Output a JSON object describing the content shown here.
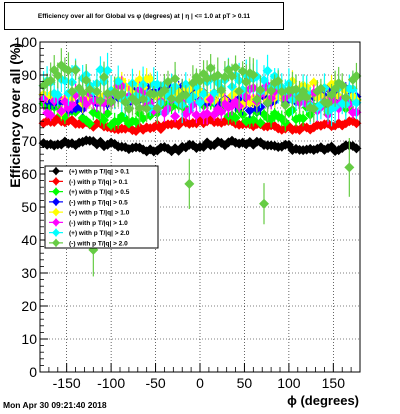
{
  "timestamp": "Mon Apr 30 09:21:40 2018",
  "chart_data": {
    "type": "scatter",
    "title": "Efficiency over all for Global vs φ (degrees) at | η | <= 1.0 at pT > 0.11",
    "xlabel": "ϕ (degrees)",
    "ylabel": "Efficiency over all (%)",
    "xlim": [
      -180,
      180
    ],
    "ylim": [
      0,
      100
    ],
    "xticks": [
      -150,
      -100,
      -50,
      0,
      50,
      100,
      150
    ],
    "yticks": [
      0,
      10,
      20,
      30,
      40,
      50,
      60,
      70,
      80,
      90,
      100
    ],
    "grid": true,
    "legend_position": "middle-left",
    "series": [
      {
        "name": "(+) with p T/|q| > 0.1",
        "color": "#000000",
        "marker": "diamond",
        "base": 68.5,
        "amp": 1.0,
        "jitter": 0.8,
        "err": 1.0,
        "drops": []
      },
      {
        "name": "(-) with p T/|q| > 0.1",
        "color": "#ff0000",
        "marker": "diamond",
        "base": 75.0,
        "amp": 1.2,
        "jitter": 0.8,
        "err": 1.0,
        "drops": []
      },
      {
        "name": "(+) with p T/|q| > 0.5",
        "color": "#00ff00",
        "marker": "diamond",
        "base": 79.0,
        "amp": 2.5,
        "jitter": 2.0,
        "err": 2.0,
        "drops": []
      },
      {
        "name": "(-) with p T/|q| > 0.5",
        "color": "#0000ff",
        "marker": "diamond",
        "base": 83.0,
        "amp": 2.0,
        "jitter": 2.0,
        "err": 2.0,
        "drops": []
      },
      {
        "name": "(+) with p T/|q| > 1.0",
        "color": "#ffff00",
        "marker": "diamond",
        "base": 84.0,
        "amp": 2.5,
        "jitter": 3.0,
        "err": 2.5,
        "drops": []
      },
      {
        "name": "(-) with p T/|q| > 1.0",
        "color": "#ff00ff",
        "marker": "diamond",
        "base": 82.0,
        "amp": 2.0,
        "jitter": 3.0,
        "err": 2.5,
        "drops": []
      },
      {
        "name": "(+) with p T/|q| > 2.0",
        "color": "#00ffff",
        "marker": "diamond",
        "base": 86.0,
        "amp": 3.0,
        "jitter": 4.0,
        "err": 4.0,
        "drops": [
          [
            -102,
            58
          ],
          [
            -62,
            50
          ],
          [
            -6,
            52
          ],
          [
            -2,
            47
          ],
          [
            46,
            60
          ],
          [
            125,
            48
          ]
        ]
      },
      {
        "name": "(-) with p T/|q| > 2.0",
        "color": "#66cc44",
        "marker": "diamond",
        "base": 86.0,
        "amp": 3.0,
        "jitter": 4.0,
        "err": 4.0,
        "drops": [
          [
            -162,
            62
          ],
          [
            -120,
            37
          ],
          [
            -78,
            37
          ],
          [
            -45,
            44
          ],
          [
            -18,
            27
          ],
          [
            -12,
            57
          ],
          [
            -10,
            50
          ],
          [
            18,
            48
          ],
          [
            42,
            44
          ],
          [
            72,
            51
          ],
          [
            102,
            62
          ],
          [
            105,
            43
          ],
          [
            162,
            50
          ],
          [
            168,
            62
          ]
        ]
      }
    ]
  }
}
